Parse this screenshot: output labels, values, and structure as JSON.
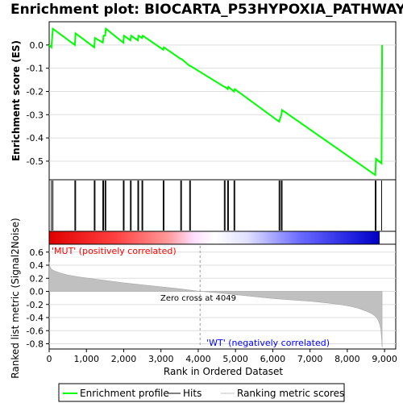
{
  "chart_data": {
    "type": "line",
    "title": "Enrichment plot: BIOCARTA_P53HYPOXIA_PATHWAY",
    "top_panel": {
      "ylabel": "Enrichment score (ES)",
      "ylim": [
        -0.58,
        0.1
      ],
      "yticks": [
        "0.0",
        "-0.1",
        "-0.2",
        "-0.3",
        "-0.4",
        "-0.5"
      ],
      "ytick_values": [
        0.0,
        -0.1,
        -0.2,
        -0.3,
        -0.4,
        -0.5
      ],
      "series": [
        {
          "name": "Enrichment profile",
          "color": "#00ff00",
          "x": [
            0,
            60,
            100,
            690,
            710,
            1210,
            1230,
            1440,
            1460,
            1500,
            1520,
            1990,
            2010,
            2180,
            2200,
            2380,
            2400,
            2490,
            2510,
            3060,
            3080,
            3530,
            3550,
            3770,
            3790,
            4700,
            4720,
            4790,
            4810,
            4960,
            4980,
            6170,
            6190,
            6230,
            6250,
            8750,
            8770,
            8920,
            8935
          ],
          "y": [
            0.0,
            -0.01,
            0.07,
            0.0,
            0.05,
            -0.01,
            0.03,
            0.01,
            0.04,
            0.04,
            0.07,
            0.01,
            0.04,
            0.02,
            0.04,
            0.02,
            0.04,
            0.03,
            0.04,
            -0.02,
            -0.01,
            -0.06,
            -0.06,
            -0.09,
            -0.09,
            -0.18,
            -0.18,
            -0.19,
            -0.18,
            -0.2,
            -0.19,
            -0.33,
            -0.32,
            -0.3,
            -0.28,
            -0.56,
            -0.49,
            -0.51,
            0.0
          ]
        }
      ]
    },
    "hits": [
      60,
      100,
      690,
      710,
      1210,
      1230,
      1440,
      1460,
      1500,
      1520,
      1990,
      2010,
      2180,
      2200,
      2380,
      2400,
      2490,
      2510,
      3060,
      3080,
      3530,
      3550,
      3770,
      3790,
      4700,
      4720,
      4790,
      4810,
      4960,
      4980,
      6170,
      6190,
      6230,
      6250,
      8750,
      8770,
      8920
    ],
    "bottom_panel": {
      "ylabel": "Ranked list metric (Signal2Noise)",
      "xlabel": "Rank in Ordered Dataset",
      "ylim": [
        -0.88,
        0.72
      ],
      "yticks": [
        "0.6",
        "0.4",
        "0.2",
        "0.0",
        "-0.2",
        "-0.4",
        "-0.6",
        "-0.8"
      ],
      "ytick_values": [
        0.6,
        0.4,
        0.2,
        0.0,
        -0.2,
        -0.4,
        -0.6,
        -0.8
      ],
      "xlim": [
        0,
        9300
      ],
      "xticks": [
        "0",
        "1,000",
        "2,000",
        "3,000",
        "4,000",
        "5,000",
        "6,000",
        "7,000",
        "8,000",
        "9,000"
      ],
      "xtick_values": [
        0,
        1000,
        2000,
        3000,
        4000,
        5000,
        6000,
        7000,
        8000,
        9000
      ],
      "metric_curve": {
        "x": [
          0,
          20,
          60,
          150,
          300,
          500,
          800,
          1200,
          1600,
          2000,
          2500,
          3000,
          3500,
          4049,
          4500,
          5000,
          5500,
          6000,
          6500,
          7000,
          7500,
          7800,
          8100,
          8300,
          8500,
          8650,
          8750,
          8820,
          8870,
          8900,
          8920,
          8935
        ],
        "y": [
          0.45,
          0.38,
          0.34,
          0.31,
          0.28,
          0.25,
          0.22,
          0.19,
          0.16,
          0.13,
          0.1,
          0.07,
          0.04,
          0.0,
          -0.02,
          -0.05,
          -0.08,
          -0.11,
          -0.13,
          -0.15,
          -0.18,
          -0.2,
          -0.23,
          -0.26,
          -0.3,
          -0.34,
          -0.38,
          -0.43,
          -0.5,
          -0.58,
          -0.72,
          -0.85
        ]
      },
      "zero_cross_rank": 4049,
      "annotations": {
        "pos_label": "'MUT' (positively correlated)",
        "neg_label": "'WT' (negatively correlated)",
        "zero_label": "Zero cross at 4049"
      },
      "colors": {
        "pos": "#ff0000",
        "neg": "#0000ff",
        "metric_fill": "#c0c0c0"
      }
    },
    "legend": [
      {
        "label": "Enrichment profile",
        "color": "#00ff00"
      },
      {
        "label": "Hits",
        "color": "#000000"
      },
      {
        "label": "Ranking metric scores",
        "color": "#c0c0c0"
      }
    ],
    "n_genes": 8935
  }
}
